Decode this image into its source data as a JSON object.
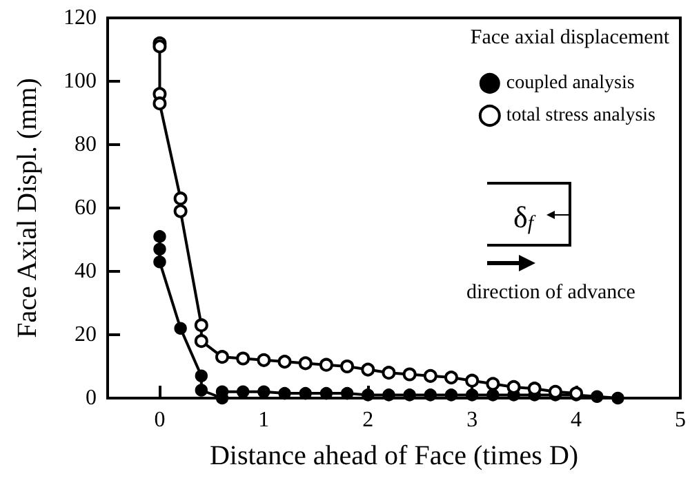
{
  "chart_data": {
    "type": "line",
    "xlabel": "Distance ahead of Face (times D)",
    "ylabel": "Face Axial Displ. (mm)",
    "legend_title": "Face axial displacement",
    "legend": "top right",
    "grid": false,
    "marker": "circle",
    "line_style": "solid",
    "xlim": [
      -0.5,
      5
    ],
    "xticks": [
      0,
      1,
      2,
      3,
      4,
      5
    ],
    "ylim": [
      0,
      120
    ],
    "yticks": [
      0,
      20,
      40,
      60,
      80,
      100,
      120
    ],
    "annotations": [
      "δ$_{f}$",
      "direction of advance"
    ],
    "series": [
      {
        "name": "coupled analysis",
        "color": "#000000",
        "x": [
          0,
          0,
          0,
          0.2,
          0.4,
          0.4,
          0.6,
          0.6,
          0.8,
          1.0,
          1.2,
          1.4,
          1.6,
          1.8,
          2.0,
          2.2,
          2.4,
          2.6,
          2.8,
          3.0,
          3.2,
          3.4,
          3.6,
          3.8,
          4.0,
          4.2,
          4.4
        ],
        "values": [
          51,
          47,
          43,
          22,
          7,
          2.5,
          0,
          2,
          2,
          2,
          1.5,
          1.5,
          1.5,
          1.5,
          1,
          1,
          1,
          1,
          1,
          1,
          1,
          1,
          1,
          1,
          1,
          0.5,
          0
        ]
      },
      {
        "name": "total stress analysis",
        "color": "#000000",
        "x": [
          0,
          0,
          0,
          0,
          0.2,
          0.2,
          0.4,
          0.4,
          0.6,
          0.8,
          1.0,
          1.2,
          1.4,
          1.6,
          1.8,
          2.0,
          2.2,
          2.4,
          2.6,
          2.8,
          3.0,
          3.2,
          3.4,
          3.6,
          3.8,
          4.0
        ],
        "values": [
          112,
          111,
          96,
          93,
          63,
          59,
          23,
          18,
          13,
          12.5,
          12,
          11.5,
          11,
          10.5,
          10,
          9,
          8,
          7.5,
          7,
          6.5,
          5.5,
          4.5,
          3.5,
          3,
          2,
          1.5
        ]
      }
    ]
  }
}
